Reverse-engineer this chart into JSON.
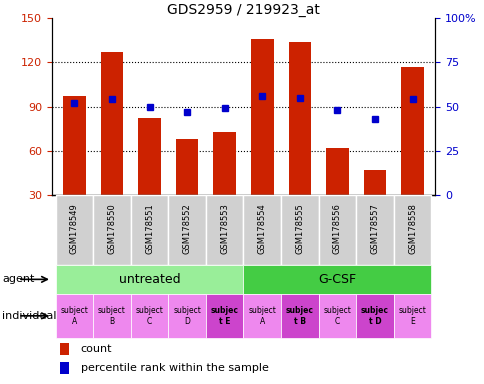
{
  "title": "GDS2959 / 219923_at",
  "samples": [
    "GSM178549",
    "GSM178550",
    "GSM178551",
    "GSM178552",
    "GSM178553",
    "GSM178554",
    "GSM178555",
    "GSM178556",
    "GSM178557",
    "GSM178558"
  ],
  "counts": [
    97,
    127,
    82,
    68,
    73,
    136,
    134,
    62,
    47,
    117
  ],
  "percentile_ranks": [
    52,
    54,
    50,
    47,
    49,
    56,
    55,
    48,
    43,
    54
  ],
  "ylim_left": [
    30,
    150
  ],
  "ylim_right": [
    0,
    100
  ],
  "yticks_left": [
    30,
    60,
    90,
    120,
    150
  ],
  "yticks_right": [
    0,
    25,
    50,
    75,
    100
  ],
  "bar_color": "#cc2200",
  "dot_color": "#0000cc",
  "agent_groups": [
    {
      "label": "untreated",
      "indices": [
        0,
        1,
        2,
        3,
        4
      ],
      "color": "#99ee99"
    },
    {
      "label": "G-CSF",
      "indices": [
        5,
        6,
        7,
        8,
        9
      ],
      "color": "#44cc44"
    }
  ],
  "individuals": [
    "subject\nA",
    "subject\nB",
    "subject\nC",
    "subject\nD",
    "subjec\nt E",
    "subject\nA",
    "subjec\nt B",
    "subject\nC",
    "subjec\nt D",
    "subject\nE"
  ],
  "bold_individuals": [
    4,
    6,
    8
  ],
  "indiv_base_color": "#ee88ee",
  "indiv_bold_color": "#cc44cc",
  "legend_count_color": "#cc2200",
  "legend_dot_color": "#0000cc",
  "xlabel_agent": "agent",
  "xlabel_individual": "individual",
  "tick_label_color_left": "#cc2200",
  "tick_label_color_right": "#0000cc",
  "sample_box_color": "#d0d0d0",
  "sample_box_edge": "#ffffff"
}
